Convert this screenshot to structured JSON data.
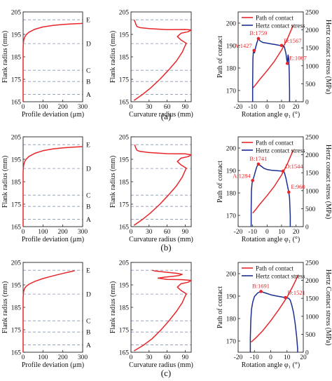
{
  "figure": {
    "row_labels": [
      "(a)",
      "(b)",
      "(c)"
    ]
  },
  "colors": {
    "path": "#e8262a",
    "stress": "#1a2f8f",
    "dash": "#8a96b8",
    "axis": "#222222"
  },
  "chart_data": [
    {
      "id": "a1",
      "type": "line",
      "xlabel": "Profile deviation (μm)",
      "ylabel": "Flank radius (mm)",
      "xlim": [
        0,
        300
      ],
      "ylim": [
        165,
        205
      ],
      "xticks": [
        0,
        100,
        200,
        300
      ],
      "yticks": [
        165,
        175,
        185,
        195,
        205
      ],
      "ref_lines": [
        {
          "y": 201.5,
          "label": "E"
        },
        {
          "y": 190.9,
          "label": "D"
        },
        {
          "y": 179.0,
          "label": "C"
        },
        {
          "y": 174.0,
          "label": "B"
        },
        {
          "y": 168.3,
          "label": "A"
        }
      ],
      "series": [
        {
          "x": [
            0,
            0,
            0,
            1,
            3,
            8,
            15,
            30,
            60,
            100,
            150,
            200,
            250,
            290,
            300
          ],
          "y": [
            165,
            180,
            189,
            191,
            192.5,
            193.8,
            194.8,
            196,
            197.3,
            198.3,
            199,
            199.4,
            199.7,
            199.85,
            199.9
          ]
        }
      ]
    },
    {
      "id": "a2",
      "type": "line",
      "xlabel": "Curvature radius (mm)",
      "ylabel": "Flank radius (mm)",
      "xlim": [
        0,
        100
      ],
      "ylim": [
        165,
        205
      ],
      "xticks": [
        0,
        30,
        60,
        90
      ],
      "yticks": [
        165,
        175,
        185,
        195,
        205
      ],
      "ref_lines": [
        {
          "y": 201.5
        },
        {
          "y": 190.9
        },
        {
          "y": 179.0
        },
        {
          "y": 174.0
        },
        {
          "y": 168.3
        }
      ],
      "series": [
        {
          "x": [
            5,
            18,
            32,
            48,
            62,
            75,
            85,
            90,
            92,
            83,
            77,
            83,
            95,
            100,
            90,
            60,
            30,
            15,
            10,
            8,
            7,
            5
          ],
          "y": [
            165.6,
            168,
            171,
            175,
            179,
            183,
            187,
            190,
            191,
            192.5,
            194,
            195.5,
            196.2,
            197,
            197.2,
            197.1,
            197.6,
            198,
            198.5,
            199.5,
            200.5,
            201.5
          ]
        }
      ]
    },
    {
      "id": "a3",
      "type": "line",
      "xlabel": "Rotation angle φ₁ (°)",
      "ylabel": "Path of contact",
      "ylabel_right": "Hertz contact stress (MPa)",
      "xlim": [
        -20,
        25
      ],
      "ylim": [
        165,
        205
      ],
      "ylim_right": [
        0,
        2500
      ],
      "xticks": [
        -20,
        -10,
        0,
        10,
        20
      ],
      "yticks": [
        170,
        180,
        190,
        200
      ],
      "yticks_right": [
        0,
        500,
        1000,
        1500,
        2000,
        2500
      ],
      "legend": {
        "position": "top-left",
        "entries": [
          "Path of contact",
          "Hertz contact stress"
        ]
      },
      "series": [
        {
          "name": "Path of contact",
          "axis": "left",
          "x": [
            -10,
            -8,
            -5,
            0,
            5,
            10,
            14,
            18
          ],
          "y": [
            171,
            172.5,
            175,
            178.8,
            183,
            188,
            193,
            199
          ]
        },
        {
          "name": "Hertz contact stress",
          "axis": "right",
          "x": [
            -10,
            -10,
            -9.8,
            -9.5,
            -9,
            -8.7,
            -8,
            -7,
            -6,
            -5,
            -3,
            0,
            3,
            6,
            9,
            11,
            12,
            13,
            13.5,
            14,
            14.5,
            15,
            15.3,
            15.5,
            15.5
          ],
          "y": [
            0,
            500,
            1200,
            1380,
            1427,
            1360,
            1500,
            1650,
            1759,
            1700,
            1650,
            1630,
            1610,
            1590,
            1567,
            1560,
            1520,
            1350,
            1200,
            1067,
            1300,
            1200,
            800,
            300,
            0
          ]
        }
      ],
      "annotations": [
        {
          "text": "A:1427",
          "x": -9,
          "y": 1427
        },
        {
          "text": "B:1759",
          "x": -6,
          "y": 1759
        },
        {
          "text": "D:1567",
          "x": 10,
          "y": 1567
        },
        {
          "text": "E:1067",
          "x": 14,
          "y": 1067
        }
      ]
    },
    {
      "id": "b1",
      "type": "line",
      "xlabel": "Profile deviation (μm)",
      "ylabel": "Flank radius (mm)",
      "xlim": [
        0,
        300
      ],
      "ylim": [
        165,
        205
      ],
      "xticks": [
        0,
        100,
        200,
        300
      ],
      "yticks": [
        165,
        175,
        185,
        195,
        205
      ],
      "ref_lines": [
        {
          "y": 201.5,
          "label": "E"
        },
        {
          "y": 190.9,
          "label": "D"
        },
        {
          "y": 179.0,
          "label": "C"
        },
        {
          "y": 174.0,
          "label": "B"
        },
        {
          "y": 168.3,
          "label": "A"
        }
      ],
      "series": [
        {
          "x": [
            0,
            0,
            0,
            1,
            3,
            8,
            15,
            30,
            60,
            100,
            150,
            200,
            250,
            290,
            300
          ],
          "y": [
            165,
            180,
            189,
            191,
            192.6,
            194,
            195,
            196.3,
            197.7,
            198.8,
            199.6,
            200.1,
            200.4,
            200.6,
            200.65
          ]
        }
      ]
    },
    {
      "id": "b2",
      "type": "line",
      "xlabel": "Curvature radius (mm)",
      "ylabel": "Flank radius (mm)",
      "xlim": [
        0,
        100
      ],
      "ylim": [
        165,
        205
      ],
      "xticks": [
        0,
        30,
        60,
        90
      ],
      "yticks": [
        165,
        175,
        185,
        195,
        205
      ],
      "ref_lines": [
        {
          "y": 201.5
        },
        {
          "y": 190.9
        },
        {
          "y": 179.0
        },
        {
          "y": 174.0
        },
        {
          "y": 168.3
        }
      ],
      "series": [
        {
          "x": [
            5,
            18,
            32,
            48,
            62,
            75,
            85,
            90,
            92,
            83,
            77,
            83,
            95,
            100,
            90,
            60,
            30,
            15,
            10,
            8,
            7,
            6
          ],
          "y": [
            165.6,
            168,
            171,
            175,
            179,
            183,
            187,
            190,
            191,
            192.5,
            194,
            195.5,
            196.2,
            197,
            197.4,
            197.5,
            198,
            198.5,
            199,
            200,
            200.8,
            201.5
          ]
        }
      ]
    },
    {
      "id": "b3",
      "type": "line",
      "xlabel": "Rotation angle φ₁ (°)",
      "ylabel": "Path of contact",
      "ylabel_right": "Hertz contact stress (MPa)",
      "xlim": [
        -20,
        25
      ],
      "ylim": [
        165,
        205
      ],
      "ylim_right": [
        0,
        2500
      ],
      "xticks": [
        -20,
        -10,
        0,
        10,
        20
      ],
      "yticks": [
        170,
        180,
        190,
        200
      ],
      "yticks_right": [
        0,
        500,
        1000,
        1500,
        2000,
        2500
      ],
      "legend": {
        "position": "top-left",
        "entries": [
          "Path of contact",
          "Hertz contact stress"
        ]
      },
      "series": [
        {
          "name": "Path of contact",
          "axis": "left",
          "x": [
            -10,
            -8,
            -5,
            0,
            5,
            10,
            14,
            18
          ],
          "y": [
            171,
            172.5,
            175,
            178.8,
            183,
            188,
            193,
            199
          ]
        },
        {
          "name": "Hertz contact stress",
          "axis": "right",
          "x": [
            -11,
            -11,
            -10.8,
            -10.4,
            -10,
            -9,
            -8,
            -7,
            -6,
            -4,
            -2,
            0,
            3,
            6,
            9,
            11,
            12,
            13,
            14,
            15,
            15.5,
            16,
            16
          ],
          "y": [
            0,
            500,
            1000,
            1200,
            1284,
            1400,
            1550,
            1680,
            1741,
            1680,
            1620,
            1590,
            1570,
            1560,
            1550,
            1544,
            1500,
            1350,
            1150,
            960,
            800,
            300,
            0
          ]
        }
      ],
      "annotations": [
        {
          "text": "A:1284",
          "x": -10,
          "y": 1284
        },
        {
          "text": "B:1741",
          "x": -6,
          "y": 1741
        },
        {
          "text": "D:1544",
          "x": 11,
          "y": 1544
        },
        {
          "text": "E:960",
          "x": 15,
          "y": 960
        }
      ]
    },
    {
      "id": "c1",
      "type": "line",
      "xlabel": "Profile deviation (μm)",
      "ylabel": "Flank radius (mm)",
      "xlim": [
        0,
        300
      ],
      "ylim": [
        165,
        205
      ],
      "xticks": [
        0,
        100,
        200,
        300
      ],
      "yticks": [
        165,
        175,
        185,
        195,
        205
      ],
      "ref_lines": [
        {
          "y": 201.5,
          "label": "E"
        },
        {
          "y": 190.9,
          "label": "D"
        },
        {
          "y": 179.0,
          "label": "C"
        },
        {
          "y": 174.0,
          "label": "B"
        },
        {
          "y": 168.3,
          "label": "A"
        }
      ],
      "series": [
        {
          "x": [
            0,
            0,
            0,
            1,
            3,
            8,
            15,
            30,
            60,
            100,
            150,
            200,
            240,
            260
          ],
          "y": [
            165,
            180,
            189,
            191,
            192.3,
            193.5,
            194.3,
            195.3,
            196.6,
            197.8,
            199,
            200.1,
            200.9,
            201.3
          ]
        }
      ]
    },
    {
      "id": "c2",
      "type": "line",
      "xlabel": "Curvature radius (mm)",
      "ylabel": "Flank radius (mm)",
      "xlim": [
        0,
        100
      ],
      "ylim": [
        165,
        205
      ],
      "xticks": [
        0,
        30,
        60,
        90
      ],
      "yticks": [
        165,
        175,
        185,
        195,
        205
      ],
      "ref_lines": [
        {
          "y": 201.5
        },
        {
          "y": 190.9
        },
        {
          "y": 179.0
        },
        {
          "y": 174.0
        },
        {
          "y": 168.3
        }
      ],
      "series": [
        {
          "x": [
            5,
            20,
            35,
            50,
            63,
            75,
            85,
            90,
            92,
            83,
            77,
            83,
            95,
            100,
            85,
            60,
            45,
            55,
            70,
            80,
            85,
            75,
            60,
            50,
            40,
            35
          ],
          "y": [
            165.6,
            168,
            171,
            175,
            179,
            183,
            187,
            190,
            191,
            192.5,
            194,
            195.5,
            196.2,
            197,
            197.3,
            197.4,
            198,
            198.4,
            198.8,
            199.2,
            199.7,
            200.2,
            200.6,
            200.9,
            201.2,
            201.5
          ]
        }
      ]
    },
    {
      "id": "c3",
      "type": "line",
      "xlabel": "Rotation angle φ₁ (°)",
      "ylabel": "Path of contact",
      "ylabel_right": "Hertz Contact stress (MPa)",
      "xlim": [
        -20,
        20
      ],
      "ylim": [
        165,
        205
      ],
      "ylim_right": [
        0,
        2500
      ],
      "xticks": [
        -20,
        -10,
        0,
        10,
        20
      ],
      "yticks": [
        170,
        180,
        190,
        200
      ],
      "yticks_right": [
        0,
        500,
        1000,
        1500,
        2000,
        2500
      ],
      "legend": {
        "position": "top-left",
        "entries": [
          "Path of contact",
          "Hertz contact stress"
        ]
      },
      "series": [
        {
          "name": "Path of contact",
          "axis": "left",
          "x": [
            -12,
            -9,
            -5,
            0,
            5,
            10,
            14,
            17
          ],
          "y": [
            169.5,
            171.5,
            174.5,
            179,
            184,
            189.5,
            195,
            199.5
          ]
        },
        {
          "name": "Hertz contact stress",
          "axis": "right",
          "x": [
            -12.5,
            -12.5,
            -12.2,
            -11.8,
            -11,
            -10,
            -8,
            -6,
            -4,
            -2,
            0,
            3,
            6,
            9,
            11,
            12,
            13,
            14,
            15,
            16,
            16.5,
            16.5
          ],
          "y": [
            0,
            400,
            900,
            1200,
            1400,
            1550,
            1650,
            1691,
            1660,
            1630,
            1600,
            1570,
            1545,
            1521,
            1500,
            1450,
            1300,
            1100,
            800,
            400,
            100,
            0
          ]
        }
      ],
      "annotations": [
        {
          "text": "B:1691",
          "x": -6,
          "y": 1691
        },
        {
          "text": "D:1521",
          "x": 9,
          "y": 1521
        }
      ]
    }
  ]
}
